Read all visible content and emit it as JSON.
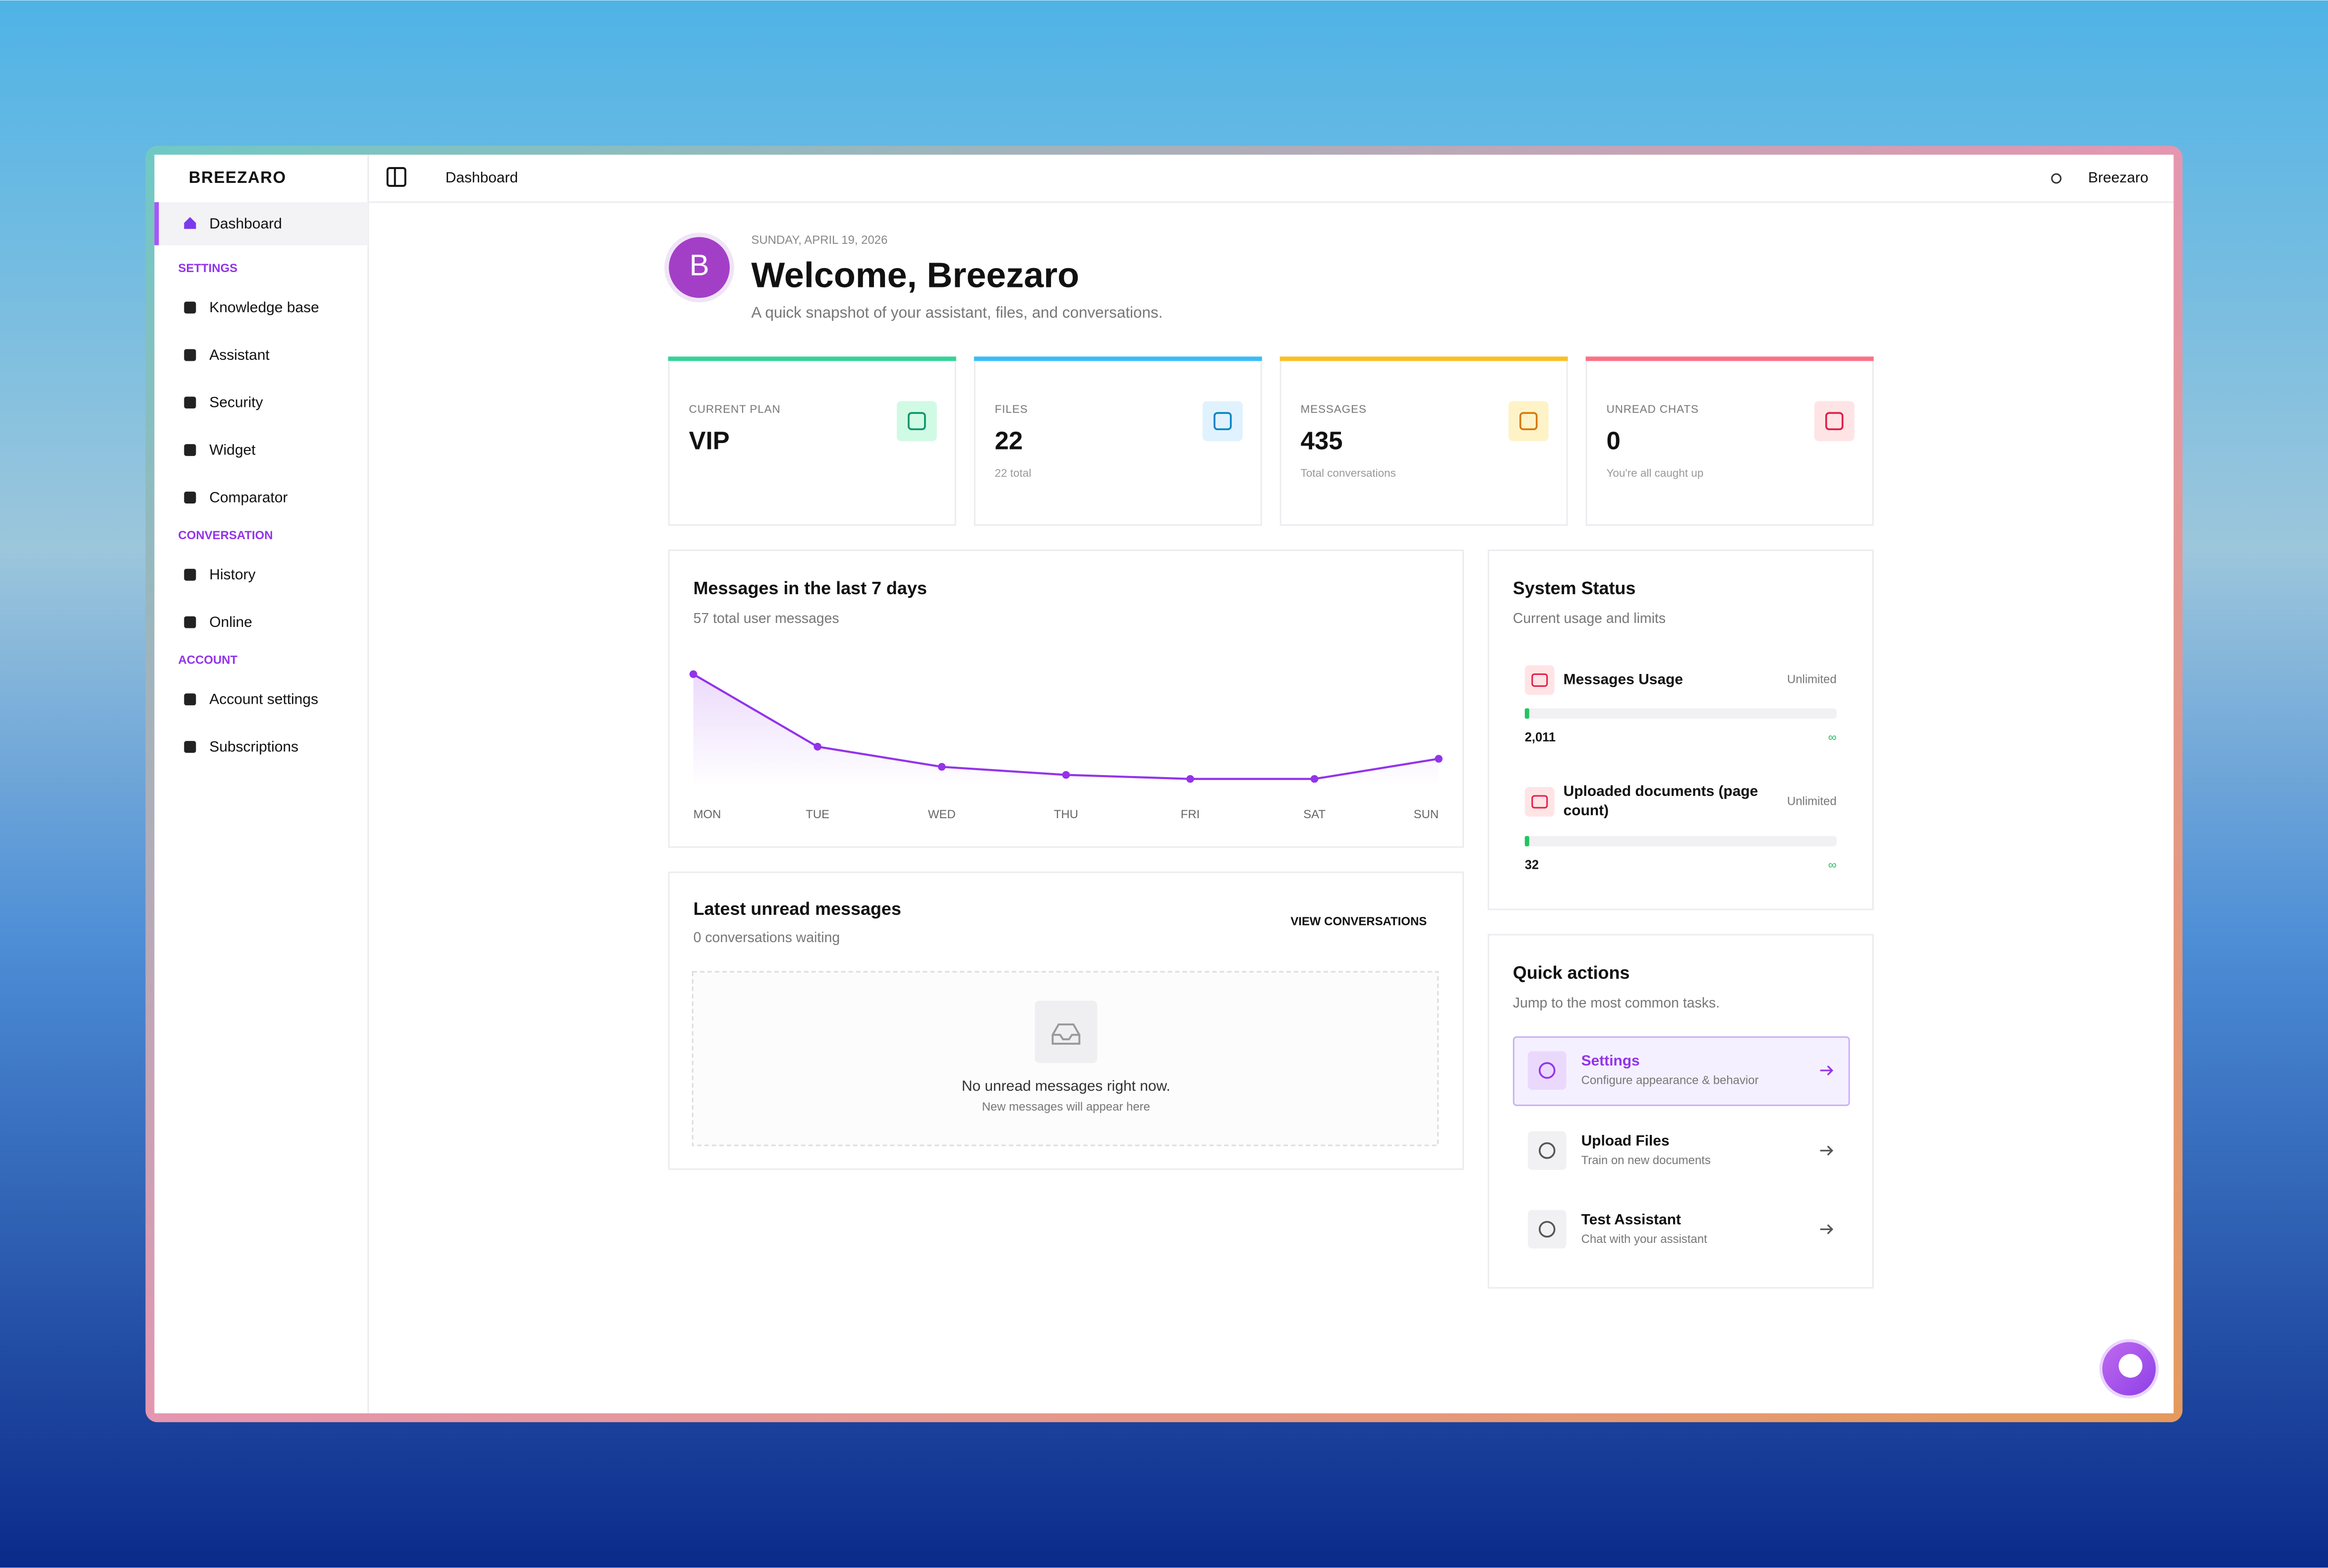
{
  "brand": "BREEZARO",
  "topbar": {
    "page": "Dashboard",
    "user": "Breezaro"
  },
  "sidebar": {
    "active": "Dashboard",
    "sections": [
      {
        "label": "SETTINGS",
        "items": [
          "Knowledge base",
          "Assistant",
          "Security",
          "Widget",
          "Comparator"
        ]
      },
      {
        "label": "CONVERSATION",
        "items": [
          "History",
          "Online"
        ]
      },
      {
        "label": "ACCOUNT",
        "items": [
          "Account settings",
          "Subscriptions"
        ]
      }
    ]
  },
  "header": {
    "avatar": "B",
    "date": "SUNDAY, APRIL 19, 2026",
    "title": "Welcome, Breezaro",
    "subtitle": "A quick snapshot of your assistant, files, and conversations."
  },
  "stats": [
    {
      "label": "CURRENT PLAN",
      "value": "VIP"
    },
    {
      "label": "FILES",
      "value": "22",
      "note": "22 total"
    },
    {
      "label": "MESSAGES",
      "value": "435",
      "note": "Total conversations"
    },
    {
      "label": "UNREAD CHATS",
      "value": "0",
      "note": "You're all caught up"
    }
  ],
  "chart_data": {
    "type": "line",
    "title": "Messages in the last 7 days",
    "subtitle": "57 total user messages",
    "categories": [
      "MON",
      "TUE",
      "WED",
      "THU",
      "FRI",
      "SAT",
      "SUN"
    ],
    "values": [
      28,
      10,
      5,
      3,
      2,
      2,
      7
    ],
    "color": "#9333ea"
  },
  "unread": {
    "title": "Latest unread messages",
    "subtitle": "0 conversations waiting",
    "action": "VIEW CONVERSATIONS",
    "empty_title": "No unread messages right now.",
    "empty_note": "New messages will appear here"
  },
  "status": {
    "title": "System Status",
    "subtitle": "Current usage and limits",
    "items": [
      {
        "label": "Messages Usage",
        "limit": "Unlimited",
        "used": "2,011",
        "max": "∞"
      },
      {
        "label": "Uploaded documents (page count)",
        "limit": "Unlimited",
        "used": "32",
        "max": "∞"
      }
    ]
  },
  "quick_actions": {
    "title": "Quick actions",
    "subtitle": "Jump to the most common tasks.",
    "items": [
      {
        "title": "Settings",
        "note": "Configure appearance & behavior"
      },
      {
        "title": "Upload Files",
        "note": "Train on new documents"
      },
      {
        "title": "Test Assistant",
        "note": "Chat with your assistant"
      }
    ]
  }
}
